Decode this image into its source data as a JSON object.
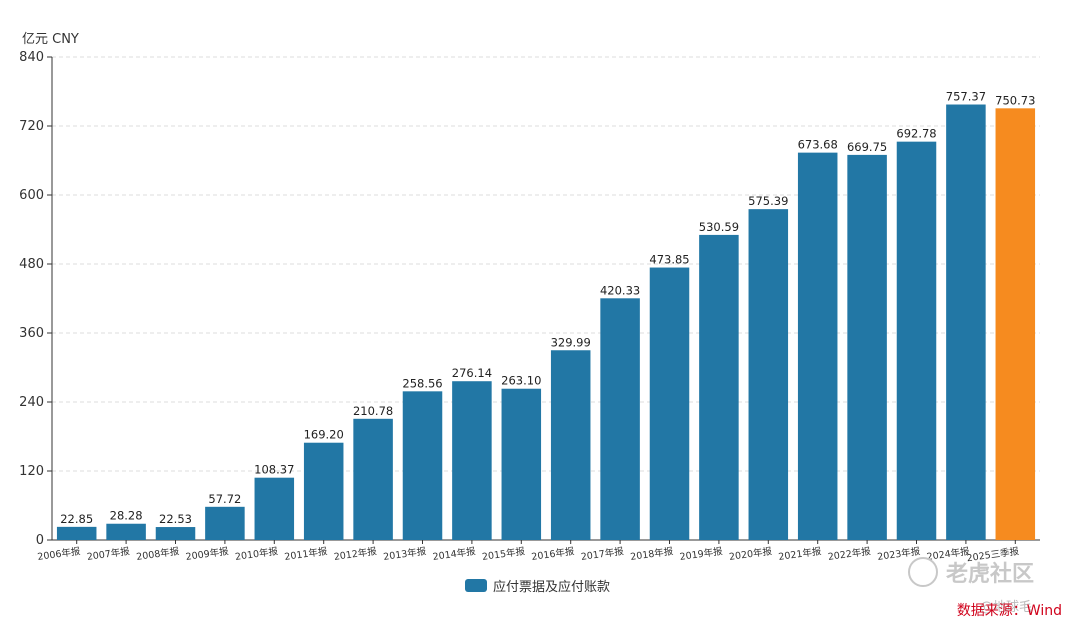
{
  "unit_label": "亿元  CNY",
  "legend_label": "应付票据及应付账款",
  "source_text": "数据来源：Wind",
  "watermark_text": "老虎社区",
  "watermark_sub": "@地球毛",
  "colors": {
    "primary": "#2277a5",
    "highlight": "#f68b1f",
    "grid": "#dddddd",
    "axis": "#333333"
  },
  "chart_data": {
    "type": "bar",
    "categories": [
      "2006年报",
      "2007年报",
      "2008年报",
      "2009年报",
      "2010年报",
      "2011年报",
      "2012年报",
      "2013年报",
      "2014年报",
      "2015年报",
      "2016年报",
      "2017年报",
      "2018年报",
      "2019年报",
      "2020年报",
      "2021年报",
      "2022年报",
      "2023年报",
      "2024年报",
      "2025三季报"
    ],
    "series": [
      {
        "name": "应付票据及应付账款",
        "values": [
          22.85,
          28.28,
          22.53,
          57.72,
          108.37,
          169.2,
          210.78,
          258.56,
          276.14,
          263.1,
          329.99,
          420.33,
          473.85,
          530.59,
          575.39,
          673.68,
          669.75,
          692.78,
          757.37,
          750.73
        ]
      }
    ],
    "value_labels": [
      "22.85",
      "28.28",
      "22.53",
      "57.72",
      "108.37",
      "169.20",
      "210.78",
      "258.56",
      "276.14",
      "263.10",
      "329.99",
      "420.33",
      "473.85",
      "530.59",
      "575.39",
      "673.68",
      "669.75",
      "692.78",
      "757.37",
      "750.73"
    ],
    "highlight_index": 19,
    "ylim": [
      0,
      840
    ],
    "yticks": [
      "0",
      "120",
      "240",
      "360",
      "480",
      "600",
      "720",
      "840"
    ],
    "grid": true,
    "legend_position": "bottom"
  }
}
